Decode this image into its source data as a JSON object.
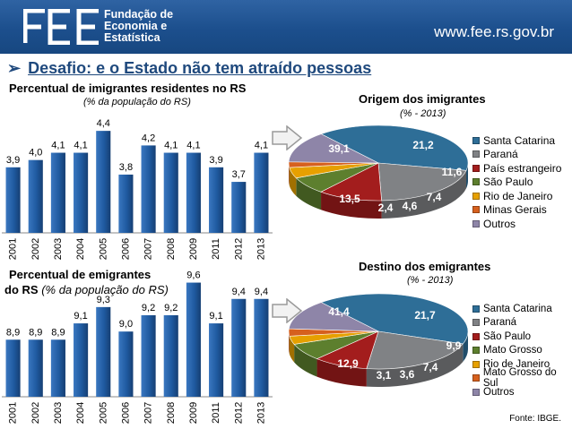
{
  "header": {
    "logo_line1": "Fundação de",
    "logo_line2": "Economia e",
    "logo_line3": "Estatística",
    "url": "www.fee.rs.gov.br",
    "background_color": "#1f5391"
  },
  "slide_title": "Desafio: e o Estado não tem atraído pessoas",
  "immigrants_bar": {
    "title": "Percentual de imigrantes residentes no RS",
    "subtitle": "(% da população do RS)"
  },
  "emigrants_bar": {
    "title_bold": "Percentual de emigrantes",
    "title_bold2": "do RS",
    "title_italic": "(% da população do RS)"
  },
  "origin_pie": {
    "title": "Origem dos imigrantes",
    "subtitle": "(% - 2013)"
  },
  "destination_pie": {
    "title": "Destino dos emigrantes",
    "subtitle": "(% - 2013)"
  },
  "source": "Fonte: IBGE.",
  "chart_data": [
    {
      "type": "bar",
      "categories": [
        "2001",
        "2002",
        "2003",
        "2004",
        "2005",
        "2006",
        "2007",
        "2008",
        "2009",
        "2011",
        "2012",
        "2013"
      ],
      "values": [
        3.9,
        4.0,
        4.1,
        4.1,
        4.4,
        3.8,
        4.2,
        4.1,
        4.1,
        3.9,
        3.7,
        4.1
      ],
      "labels": [
        "3,9",
        "4,0",
        "4,1",
        "4,1",
        "4,4",
        "3,8",
        "4,2",
        "4,1",
        "4,1",
        "3,9",
        "3,7",
        "4,1"
      ],
      "title": "Percentual de imigrantes residentes no RS",
      "subtitle": "(% da população do RS)",
      "ylim": [
        3.0,
        4.5
      ],
      "color": "#1f5aa0"
    },
    {
      "type": "bar",
      "categories": [
        "2001",
        "2002",
        "2003",
        "2004",
        "2005",
        "2006",
        "2007",
        "2008",
        "2009",
        "2011",
        "2012",
        "2013"
      ],
      "values": [
        8.9,
        8.9,
        8.9,
        9.1,
        9.3,
        9.0,
        9.2,
        9.2,
        9.6,
        9.1,
        9.4,
        9.4
      ],
      "labels": [
        "8,9",
        "8,9",
        "8,9",
        "9,1",
        "9,3",
        "9,0",
        "9,2",
        "9,2",
        "9,6",
        "9,1",
        "9,4",
        "9,4"
      ],
      "title": "Percentual de emigrantes do RS",
      "subtitle": "(% da população do RS)",
      "ylim": [
        8.2,
        9.65
      ],
      "color": "#1f5aa0"
    },
    {
      "type": "pie",
      "title": "Origem dos imigrantes",
      "subtitle": "(% - 2013)",
      "slices": [
        {
          "label": "Santa Catarina",
          "value": 39.1,
          "text": "39,1",
          "color": "#2e6e97"
        },
        {
          "label": "Paraná",
          "value": 21.2,
          "text": "21,2",
          "color": "#808285"
        },
        {
          "label": "País estrangeiro",
          "value": 11.6,
          "text": "11,6",
          "color": "#a31d1d"
        },
        {
          "label": "São Paulo",
          "value": 7.4,
          "text": "7,4",
          "color": "#5d7f2e"
        },
        {
          "label": "Rio de Janeiro",
          "value": 4.6,
          "text": "4,6",
          "color": "#e6a000"
        },
        {
          "label": "Minas Gerais",
          "value": 2.4,
          "text": "2,4",
          "color": "#d6601e"
        },
        {
          "label": "Outros",
          "value": 13.5,
          "text": "13,5",
          "color": "#8e85a8"
        }
      ]
    },
    {
      "type": "pie",
      "title": "Destino dos emigrantes",
      "subtitle": "(% - 2013)",
      "slices": [
        {
          "label": "Santa Catarina",
          "value": 41.4,
          "text": "41,4",
          "color": "#2e6e97"
        },
        {
          "label": "Paraná",
          "value": 21.7,
          "text": "21,7",
          "color": "#808285"
        },
        {
          "label": "São Paulo",
          "value": 9.9,
          "text": "9,9",
          "color": "#a31d1d"
        },
        {
          "label": "Mato Grosso",
          "value": 7.4,
          "text": "7,4",
          "color": "#5d7f2e"
        },
        {
          "label": "Rio de Janeiro",
          "value": 3.6,
          "text": "3,6",
          "color": "#e6a000"
        },
        {
          "label": "Mato Grosso do Sul",
          "value": 3.1,
          "text": "3,1",
          "color": "#d6601e"
        },
        {
          "label": "Outros",
          "value": 12.9,
          "text": "12,9",
          "color": "#8e85a8"
        }
      ]
    }
  ]
}
